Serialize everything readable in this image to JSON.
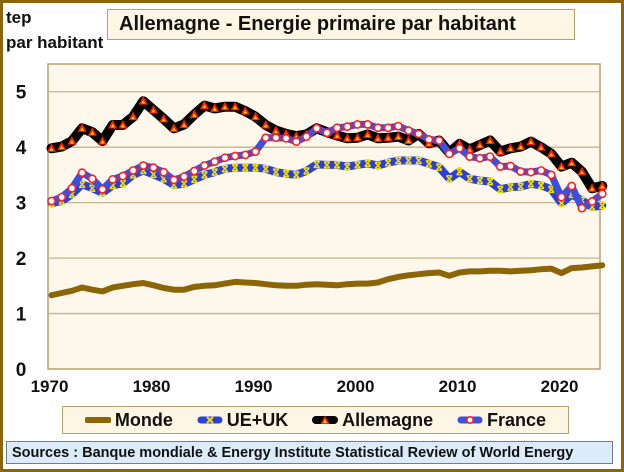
{
  "chart_data": {
    "type": "line",
    "title": "Allemagne - Energie primaire par habitant",
    "ylabel_line1": "tep",
    "ylabel_line2": "par habitant",
    "xlabel": "",
    "xlim": [
      1970,
      2025
    ],
    "ylim": [
      0,
      5.5
    ],
    "grid": true,
    "x_ticks": [
      "1970",
      "1980",
      "1990",
      "2000",
      "2010",
      "2020"
    ],
    "x_tick_values": [
      1970,
      1980,
      1990,
      2000,
      2010,
      2020
    ],
    "y_ticks": [
      "0",
      "1",
      "2",
      "3",
      "4",
      "5"
    ],
    "y_tick_values": [
      0,
      1,
      2,
      3,
      4,
      5
    ],
    "legend_position": "bottom",
    "x": [
      1970,
      1971,
      1972,
      1973,
      1974,
      1975,
      1976,
      1977,
      1978,
      1979,
      1980,
      1981,
      1982,
      1983,
      1984,
      1985,
      1986,
      1987,
      1988,
      1989,
      1990,
      1991,
      1992,
      1993,
      1994,
      1995,
      1996,
      1997,
      1998,
      1999,
      2000,
      2001,
      2002,
      2003,
      2004,
      2005,
      2006,
      2007,
      2008,
      2009,
      2010,
      2011,
      2012,
      2013,
      2014,
      2015,
      2016,
      2017,
      2018,
      2019,
      2020,
      2021,
      2022,
      2023,
      2024
    ],
    "series": [
      {
        "name": "Monde",
        "color": "#8B6508",
        "marker": "none",
        "values": [
          1.33,
          1.37,
          1.41,
          1.47,
          1.43,
          1.4,
          1.47,
          1.5,
          1.53,
          1.55,
          1.51,
          1.46,
          1.43,
          1.43,
          1.48,
          1.5,
          1.51,
          1.54,
          1.57,
          1.56,
          1.55,
          1.53,
          1.51,
          1.5,
          1.5,
          1.52,
          1.53,
          1.52,
          1.51,
          1.53,
          1.54,
          1.54,
          1.56,
          1.62,
          1.66,
          1.69,
          1.71,
          1.73,
          1.74,
          1.68,
          1.74,
          1.76,
          1.76,
          1.77,
          1.77,
          1.76,
          1.77,
          1.78,
          1.8,
          1.81,
          1.73,
          1.82,
          1.83,
          1.85,
          1.87
        ]
      },
      {
        "name": "UE+UK",
        "color": "#2E3FD6",
        "marker": "x-yellow",
        "marker_color": "#F2E000",
        "values": [
          2.99,
          3.03,
          3.15,
          3.33,
          3.26,
          3.18,
          3.31,
          3.35,
          3.5,
          3.58,
          3.51,
          3.43,
          3.32,
          3.34,
          3.42,
          3.5,
          3.55,
          3.61,
          3.63,
          3.63,
          3.63,
          3.61,
          3.55,
          3.52,
          3.5,
          3.57,
          3.69,
          3.68,
          3.68,
          3.65,
          3.68,
          3.71,
          3.67,
          3.72,
          3.76,
          3.76,
          3.76,
          3.7,
          3.64,
          3.43,
          3.56,
          3.43,
          3.4,
          3.38,
          3.24,
          3.28,
          3.29,
          3.34,
          3.31,
          3.24,
          2.99,
          3.15,
          3.04,
          2.92,
          2.95
        ]
      },
      {
        "name": "Allemagne",
        "color": "#000000",
        "marker": "triangle-red",
        "marker_color": "#FF1A00",
        "marker_inner": "#FFD400",
        "values": [
          3.98,
          4.01,
          4.11,
          4.34,
          4.27,
          4.11,
          4.4,
          4.4,
          4.55,
          4.83,
          4.67,
          4.51,
          4.34,
          4.41,
          4.59,
          4.75,
          4.7,
          4.73,
          4.73,
          4.65,
          4.55,
          4.4,
          4.3,
          4.24,
          4.2,
          4.23,
          4.34,
          4.27,
          4.21,
          4.16,
          4.17,
          4.23,
          4.16,
          4.17,
          4.19,
          4.12,
          4.24,
          4.07,
          4.12,
          3.9,
          4.06,
          3.96,
          4.04,
          4.12,
          3.92,
          3.98,
          4.01,
          4.1,
          4.0,
          3.88,
          3.65,
          3.72,
          3.56,
          3.26,
          3.3
        ]
      },
      {
        "name": "France",
        "color": "#3B4FE0",
        "marker": "circle-white-red",
        "marker_color": "#FF2020",
        "values": [
          3.03,
          3.1,
          3.26,
          3.54,
          3.43,
          3.24,
          3.42,
          3.48,
          3.58,
          3.67,
          3.63,
          3.55,
          3.41,
          3.47,
          3.57,
          3.67,
          3.74,
          3.81,
          3.84,
          3.86,
          3.92,
          4.17,
          4.17,
          4.16,
          4.1,
          4.19,
          4.34,
          4.26,
          4.35,
          4.37,
          4.41,
          4.41,
          4.35,
          4.35,
          4.38,
          4.3,
          4.24,
          4.14,
          4.12,
          3.88,
          3.98,
          3.83,
          3.8,
          3.83,
          3.65,
          3.66,
          3.56,
          3.55,
          3.58,
          3.5,
          3.1,
          3.3,
          2.9,
          3.02,
          3.16
        ]
      }
    ],
    "source": "Sources : Banque mondiale & Energy Institute Statistical Review of World Energy"
  },
  "colors": {
    "frame": "#8B6508",
    "plot_bg": "#FEF8EC",
    "grid": "#C8B48A",
    "title_bg": "#FEF6E4",
    "sources_bg": "#DCEBFA"
  }
}
